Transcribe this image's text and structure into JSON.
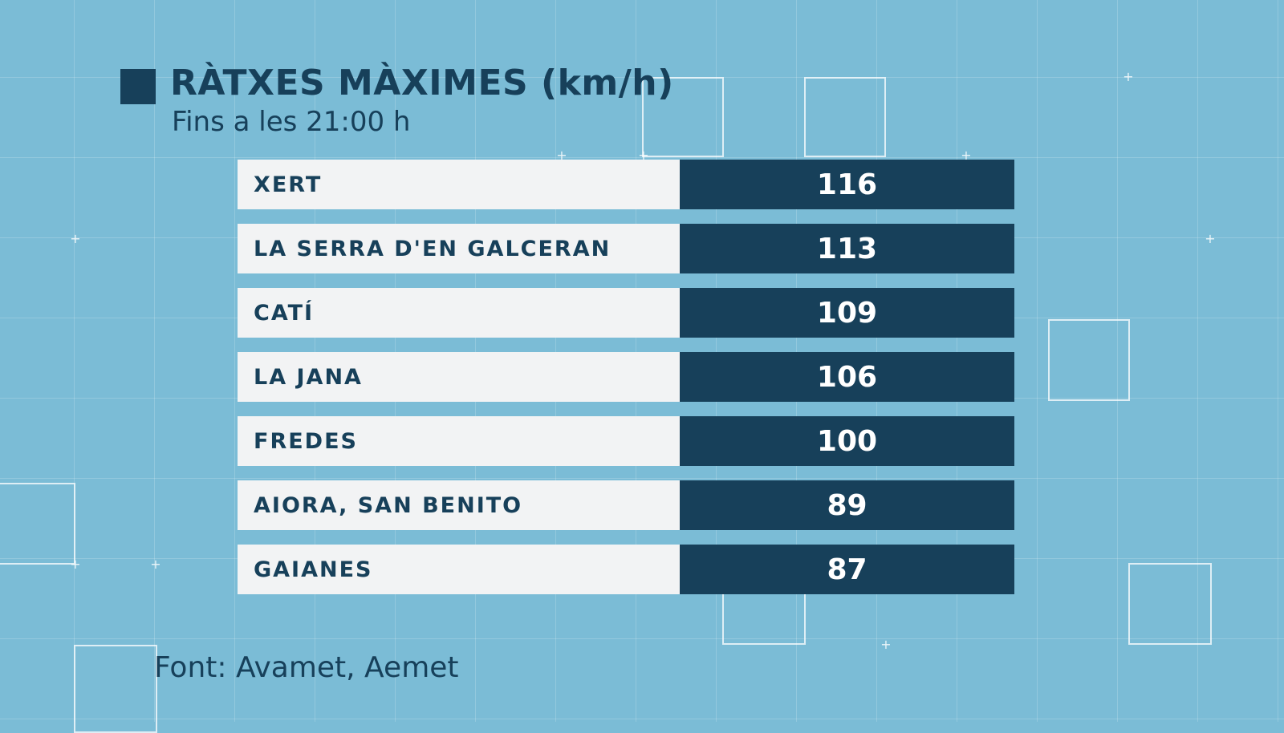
{
  "chart_data": {
    "type": "table",
    "title": "RÀTXES MÀXIMES (km/h)",
    "subtitle": "Fins a les 21:00 h",
    "rows": [
      {
        "label": "XERT",
        "value": 116
      },
      {
        "label": "LA SERRA D'EN GALCERAN",
        "value": 113
      },
      {
        "label": "CATÍ",
        "value": 109
      },
      {
        "label": "LA JANA",
        "value": 106
      },
      {
        "label": "FREDES",
        "value": 100
      },
      {
        "label": "AIORA, SAN BENITO",
        "value": 89
      },
      {
        "label": "GAIANES",
        "value": 87
      }
    ],
    "source": "Font: Avamet, Aemet"
  },
  "colors": {
    "background": "#7bbcd6",
    "accent": "#17405a",
    "label_background": "#f2f3f4",
    "value_text": "#ffffff"
  }
}
